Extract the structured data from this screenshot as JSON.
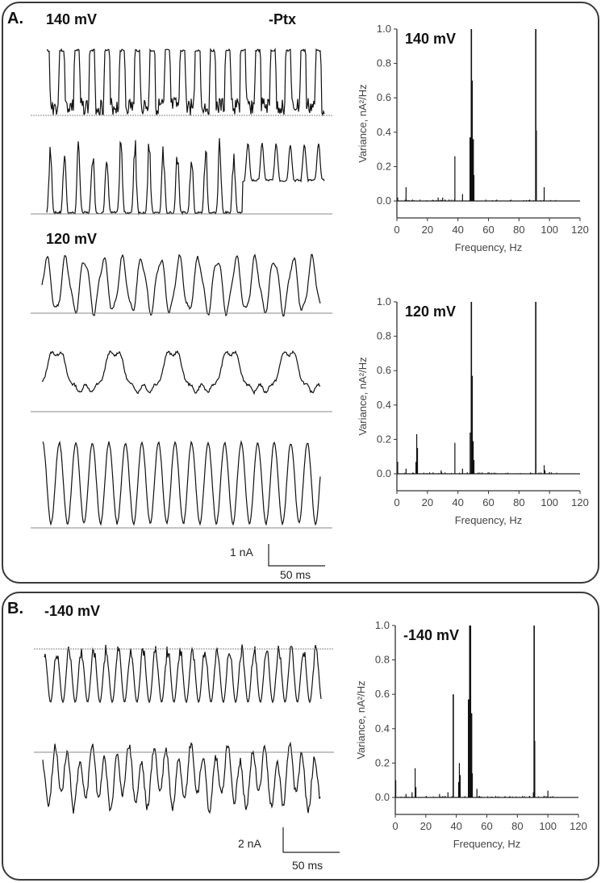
{
  "panelA": {
    "label": "A.",
    "condition": "-Ptx",
    "traces_label_1": "140 mV",
    "traces_label_2": "120 mV",
    "scalebar": {
      "current": "1 nA",
      "time": "50 ms"
    }
  },
  "panelB": {
    "label": "B.",
    "traces_label": "-140 mV",
    "scalebar": {
      "current": "2 nA",
      "time": "50 ms"
    }
  },
  "chart_data": [
    {
      "type": "bar",
      "title": "140 mV",
      "xlabel": "Frequency, Hz",
      "ylabel": "Variance, nA²/Hz",
      "xlim": [
        0,
        120
      ],
      "ylim": [
        -0.1,
        1.0
      ],
      "xticks": [
        0,
        20,
        40,
        60,
        80,
        100,
        120
      ],
      "yticks": [
        0.0,
        0.2,
        0.4,
        0.6,
        0.8,
        1.0
      ],
      "grid": false,
      "x": [
        0.5,
        6,
        27,
        30,
        38,
        43,
        48,
        48.8,
        49.3,
        50,
        50.5,
        91,
        91.3,
        96.5
      ],
      "values": [
        0.02,
        0.08,
        0.02,
        0.02,
        0.26,
        0.04,
        0.37,
        1.0,
        0.7,
        0.36,
        0.15,
        1.0,
        0.41,
        0.08
      ]
    },
    {
      "type": "bar",
      "title": "120 mV",
      "xlabel": "Frequency, Hz",
      "ylabel": "Variance, nA²/Hz",
      "xlim": [
        0,
        120
      ],
      "ylim": [
        -0.1,
        1.0
      ],
      "xticks": [
        0,
        20,
        40,
        60,
        80,
        100,
        120
      ],
      "yticks": [
        0.0,
        0.2,
        0.4,
        0.6,
        0.8,
        1.0
      ],
      "grid": false,
      "x": [
        0.5,
        6,
        12.5,
        13,
        13.5,
        29,
        38,
        43,
        48,
        48.8,
        49.3,
        50,
        50.5,
        91,
        96.5,
        97,
        100
      ],
      "values": [
        0.07,
        0.03,
        0.07,
        0.23,
        0.15,
        0.02,
        0.18,
        0.03,
        0.24,
        1.0,
        0.57,
        0.19,
        0.08,
        1.0,
        0.05,
        0.02,
        0.01
      ]
    },
    {
      "type": "bar",
      "title": "-140 mV",
      "xlabel": "Frequency, Hz",
      "ylabel": "Variance, nA²/Hz",
      "xlim": [
        0,
        120
      ],
      "ylim": [
        -0.1,
        1.0
      ],
      "xticks": [
        0,
        20,
        40,
        60,
        80,
        100,
        120
      ],
      "yticks": [
        0.0,
        0.2,
        0.4,
        0.6,
        0.8,
        1.0
      ],
      "grid": false,
      "x": [
        0.3,
        7,
        11,
        13,
        13.5,
        29,
        34.5,
        38,
        41.5,
        42,
        42.5,
        48,
        48.8,
        49.3,
        50,
        50.5,
        53.5,
        90.5,
        91,
        91.3,
        97.5,
        100
      ],
      "values": [
        0.1,
        0.02,
        0.03,
        0.17,
        0.06,
        0.02,
        0.03,
        0.6,
        0.09,
        0.2,
        0.13,
        0.57,
        1.0,
        1.0,
        0.49,
        0.14,
        0.05,
        0.03,
        1.0,
        0.33,
        0.01,
        0.04
      ]
    }
  ]
}
